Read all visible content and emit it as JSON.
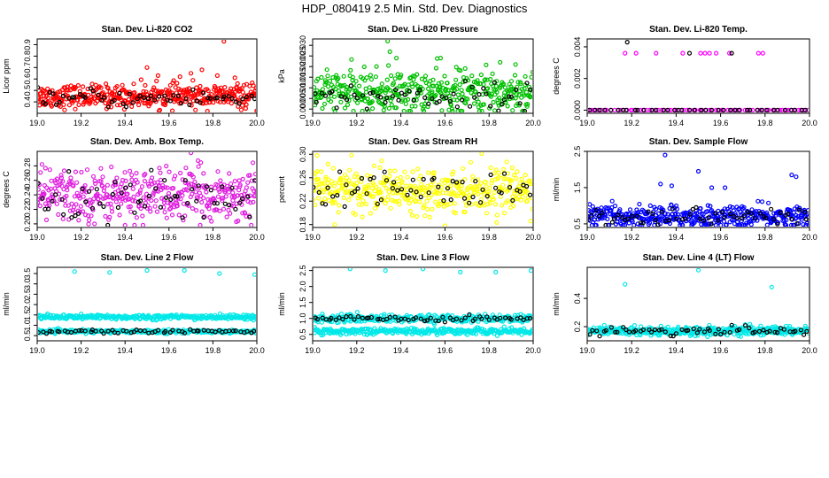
{
  "figure": {
    "title": "HDP_080419  2.5 Min. Std. Dev. Diagnostics"
  },
  "chart_data": [
    {
      "id": "co2",
      "type": "scatter",
      "title": "Stan. Dev. Li-820 CO2",
      "ylabel": "Licor ppm",
      "xlim": [
        19.0,
        20.0
      ],
      "ylim": [
        0.3,
        0.95
      ],
      "xticks": [
        "19.0",
        "19.2",
        "19.4",
        "19.6",
        "19.8",
        "20.0"
      ],
      "yticks": [
        "0.4",
        "0.5",
        "0.6",
        "0.7",
        "0.8",
        "0.9"
      ],
      "series": [
        {
          "name": "dense",
          "color": "#ff0000",
          "n": 420,
          "mean": 0.45,
          "sd": 0.05,
          "outliers": [
            [
              19.5,
              0.7
            ],
            [
              19.7,
              0.65
            ],
            [
              19.75,
              0.68
            ],
            [
              19.82,
              0.63
            ],
            [
              19.9,
              0.61
            ],
            [
              19.85,
              0.93
            ],
            [
              20.0,
              0.32
            ],
            [
              19.65,
              0.62
            ],
            [
              19.55,
              0.63
            ]
          ]
        },
        {
          "name": "sparse",
          "color": "#000000",
          "n": 60,
          "mean": 0.43,
          "sd": 0.04,
          "outliers": []
        }
      ]
    },
    {
      "id": "pressure",
      "type": "scatter",
      "title": "Stan. Dev. Li-820 Pressure",
      "ylabel": "kPa",
      "xlim": [
        19.0,
        20.0
      ],
      "ylim": [
        -0.002,
        0.033
      ],
      "xticks": [
        "19.0",
        "19.2",
        "19.4",
        "19.6",
        "19.8",
        "20.0"
      ],
      "yticks": [
        "0.000",
        "0.005",
        "0.010",
        "0.015",
        "0.020",
        "0.025",
        "0.030"
      ],
      "series": [
        {
          "name": "dense",
          "color": "#00c000",
          "n": 420,
          "mean": 0.008,
          "sd": 0.005,
          "outliers": [
            [
              19.34,
              0.032
            ],
            [
              19.35,
              0.027
            ],
            [
              19.38,
              0.024
            ],
            [
              19.58,
              0.024
            ],
            [
              19.85,
              0.022
            ],
            [
              19.92,
              0.021
            ]
          ]
        },
        {
          "name": "sparse",
          "color": "#000000",
          "n": 60,
          "mean": 0.006,
          "sd": 0.003,
          "outliers": []
        }
      ]
    },
    {
      "id": "temp",
      "type": "scatter",
      "title": "Stan. Dev. Li-820 Temp.",
      "ylabel": "degrees C",
      "xlim": [
        19.0,
        20.0
      ],
      "ylim": [
        -0.0002,
        0.0045
      ],
      "xticks": [
        "19.0",
        "19.2",
        "19.4",
        "19.6",
        "19.8",
        "20.0"
      ],
      "yticks": [
        "0.000",
        "0.002",
        "0.004"
      ],
      "series": [
        {
          "name": "dense",
          "color": "#ff00ff",
          "n": 70,
          "mean": 0.0,
          "sd": 0.0,
          "outliers": [
            [
              19.17,
              0.0036
            ],
            [
              19.22,
              0.0036
            ],
            [
              19.31,
              0.0036
            ],
            [
              19.43,
              0.0036
            ],
            [
              19.51,
              0.0036
            ],
            [
              19.53,
              0.0036
            ],
            [
              19.55,
              0.0036
            ],
            [
              19.58,
              0.0036
            ],
            [
              19.64,
              0.0036
            ],
            [
              19.77,
              0.0036
            ],
            [
              19.79,
              0.0036
            ]
          ]
        },
        {
          "name": "sparse",
          "color": "#000000",
          "n": 40,
          "mean": 0.0,
          "sd": 0.0,
          "outliers": [
            [
              19.18,
              0.0043
            ],
            [
              19.46,
              0.0036
            ],
            [
              19.65,
              0.0036
            ]
          ]
        }
      ]
    },
    {
      "id": "boxtemp",
      "type": "scatter",
      "title": "Stan. Dev. Amb. Box Temp.",
      "ylabel": "degrees C",
      "xlim": [
        19.0,
        20.0
      ],
      "ylim": [
        0.195,
        0.3
      ],
      "xticks": [
        "19.0",
        "19.2",
        "19.4",
        "19.6",
        "19.8",
        "20.0"
      ],
      "yticks": [
        "0.20",
        "0.22",
        "0.24",
        "0.26",
        "0.28"
      ],
      "series": [
        {
          "name": "dense",
          "color": "#e020e0",
          "n": 420,
          "mean": 0.24,
          "sd": 0.018,
          "outliers": [
            [
              19.7,
              0.298
            ],
            [
              19.4,
              0.198
            ]
          ]
        },
        {
          "name": "sparse",
          "color": "#000000",
          "n": 60,
          "mean": 0.235,
          "sd": 0.015,
          "outliers": []
        }
      ]
    },
    {
      "id": "rh",
      "type": "scatter",
      "title": "Stan. Dev. Gas Stream RH",
      "ylabel": "percent",
      "xlim": [
        19.0,
        20.0
      ],
      "ylim": [
        0.175,
        0.305
      ],
      "xticks": [
        "19.0",
        "19.2",
        "19.4",
        "19.6",
        "19.8",
        "20.0"
      ],
      "yticks": [
        "0.18",
        "0.22",
        "0.26",
        "0.30"
      ],
      "series": [
        {
          "name": "dense",
          "color": "#ffff00",
          "n": 420,
          "mean": 0.24,
          "sd": 0.018,
          "outliers": [
            [
              19.02,
              0.298
            ],
            [
              19.6,
              0.178
            ],
            [
              19.1,
              0.18
            ]
          ]
        },
        {
          "name": "sparse",
          "color": "#000000",
          "n": 60,
          "mean": 0.24,
          "sd": 0.016,
          "outliers": []
        }
      ]
    },
    {
      "id": "sampleflow",
      "type": "scatter",
      "title": "Stan. Dev. Sample Flow",
      "ylabel": "ml/min",
      "xlim": [
        19.0,
        20.0
      ],
      "ylim": [
        0.4,
        2.5
      ],
      "xticks": [
        "19.0",
        "19.2",
        "19.4",
        "19.6",
        "19.8",
        "20.0"
      ],
      "yticks": [
        "0.5",
        "1.5",
        "2.5"
      ],
      "series": [
        {
          "name": "dense",
          "color": "#0000ff",
          "n": 420,
          "mean": 0.7,
          "sd": 0.15,
          "outliers": [
            [
              19.35,
              2.4
            ],
            [
              19.5,
              1.95
            ],
            [
              19.33,
              1.6
            ],
            [
              19.38,
              1.55
            ],
            [
              19.56,
              1.5
            ],
            [
              19.92,
              1.85
            ],
            [
              19.94,
              1.8
            ],
            [
              19.62,
              1.5
            ]
          ]
        },
        {
          "name": "sparse",
          "color": "#000000",
          "n": 60,
          "mean": 0.7,
          "sd": 0.12,
          "outliers": []
        }
      ]
    },
    {
      "id": "line2",
      "type": "scatter",
      "title": "Stan. Dev. Line 2 Flow",
      "ylabel": "ml/min",
      "xlim": [
        19.0,
        20.0
      ],
      "ylim": [
        0.25,
        3.8
      ],
      "xticks": [
        "19.0",
        "19.2",
        "19.4",
        "19.6",
        "19.8",
        "20.0"
      ],
      "yticks": [
        "0.5",
        "1.0",
        "1.5",
        "2.0",
        "2.5",
        "3.0",
        "3.5"
      ],
      "series": [
        {
          "name": "upper",
          "color": "#00e8e8",
          "n": 300,
          "mean": 1.4,
          "sd": 0.06,
          "outliers": [
            [
              19.17,
              3.6
            ],
            [
              19.33,
              3.55
            ],
            [
              19.5,
              3.65
            ],
            [
              19.67,
              3.65
            ],
            [
              19.83,
              3.5
            ],
            [
              19.99,
              3.45
            ]
          ]
        },
        {
          "name": "lower",
          "color": "#00e8e8",
          "n": 300,
          "mean": 0.7,
          "sd": 0.04,
          "outliers": []
        },
        {
          "name": "sparse",
          "color": "#000000",
          "n": 60,
          "mean": 0.7,
          "sd": 0.05,
          "outliers": []
        }
      ]
    },
    {
      "id": "line3",
      "type": "scatter",
      "title": "Stan. Dev. Line 3 Flow",
      "ylabel": "ml/min",
      "xlim": [
        19.0,
        20.0
      ],
      "ylim": [
        0.3,
        2.6
      ],
      "xticks": [
        "19.0",
        "19.2",
        "19.4",
        "19.6",
        "19.8",
        "20.0"
      ],
      "yticks": [
        "0.5",
        "1.0",
        "1.5",
        "2.0",
        "2.5"
      ],
      "series": [
        {
          "name": "upper",
          "color": "#00e8e8",
          "n": 300,
          "mean": 1.0,
          "sd": 0.06,
          "outliers": [
            [
              19.17,
              2.55
            ],
            [
              19.33,
              2.5
            ],
            [
              19.5,
              2.55
            ],
            [
              19.67,
              2.45
            ],
            [
              19.83,
              2.45
            ],
            [
              19.99,
              2.5
            ]
          ]
        },
        {
          "name": "lower",
          "color": "#00e8e8",
          "n": 300,
          "mean": 0.6,
          "sd": 0.05,
          "outliers": []
        },
        {
          "name": "sparse",
          "color": "#000000",
          "n": 60,
          "mean": 1.0,
          "sd": 0.05,
          "outliers": []
        }
      ]
    },
    {
      "id": "line4",
      "type": "scatter",
      "title": "Stan. Dev. Line 4 (LT) Flow",
      "ylabel": "ml/min",
      "xlim": [
        19.0,
        20.0
      ],
      "ylim": [
        0.1,
        0.62
      ],
      "xticks": [
        "19.0",
        "19.2",
        "19.4",
        "19.6",
        "19.8",
        "20.0"
      ],
      "yticks": [
        "0.2",
        "0.4"
      ],
      "series": [
        {
          "name": "dense",
          "color": "#00e8e8",
          "n": 420,
          "mean": 0.17,
          "sd": 0.015,
          "outliers": [
            [
              19.17,
              0.5
            ],
            [
              19.5,
              0.6
            ],
            [
              19.83,
              0.48
            ]
          ]
        },
        {
          "name": "sparse",
          "color": "#000000",
          "n": 60,
          "mean": 0.17,
          "sd": 0.015,
          "outliers": []
        }
      ]
    }
  ]
}
